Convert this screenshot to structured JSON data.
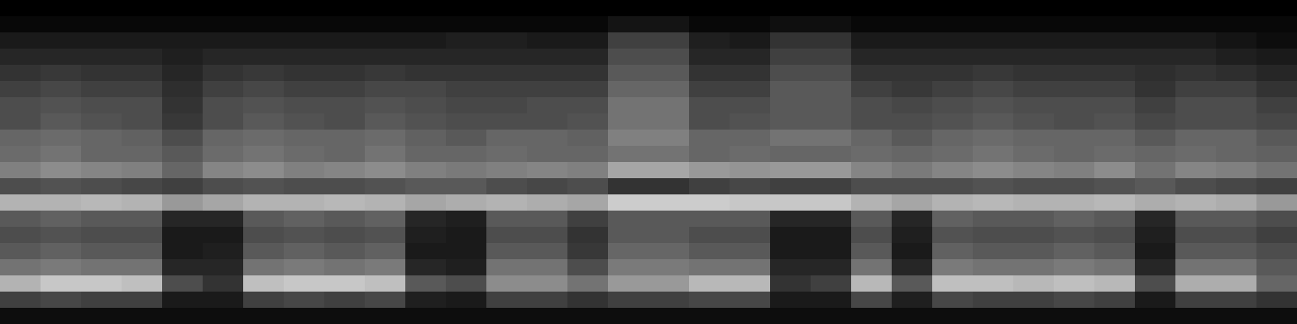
{
  "chart_data": {
    "type": "heatmap",
    "tick_labels": false,
    "zlim": [
      0,
      100
    ],
    "colors": [
      "#000000",
      "#ffffff"
    ],
    "cells": [
      [
        0,
        0,
        0,
        0,
        0,
        0,
        0,
        0,
        0,
        0,
        0,
        0,
        0,
        0,
        0,
        0,
        0,
        0,
        0,
        0,
        0,
        0,
        0,
        0,
        0,
        0,
        0,
        0,
        0,
        0,
        0,
        0
      ],
      [
        3,
        3,
        3,
        3,
        3,
        3,
        3,
        3,
        3,
        3,
        3,
        3,
        3,
        3,
        3,
        8,
        8,
        3,
        3,
        6,
        6,
        3,
        3,
        3,
        3,
        3,
        3,
        3,
        3,
        3,
        3,
        3
      ],
      [
        10,
        10,
        10,
        10,
        10,
        10,
        10,
        10,
        10,
        10,
        10,
        12,
        12,
        10,
        10,
        25,
        25,
        12,
        10,
        20,
        20,
        10,
        10,
        10,
        10,
        10,
        10,
        10,
        10,
        10,
        8,
        5
      ],
      [
        15,
        15,
        15,
        15,
        12,
        15,
        15,
        15,
        15,
        15,
        15,
        15,
        15,
        15,
        15,
        30,
        30,
        15,
        15,
        25,
        25,
        15,
        15,
        15,
        15,
        15,
        15,
        15,
        15,
        15,
        12,
        10
      ],
      [
        20,
        22,
        20,
        20,
        15,
        20,
        22,
        20,
        20,
        22,
        20,
        20,
        20,
        20,
        20,
        35,
        35,
        20,
        20,
        30,
        30,
        20,
        20,
        20,
        22,
        20,
        20,
        20,
        18,
        20,
        18,
        15
      ],
      [
        25,
        28,
        25,
        25,
        18,
        25,
        28,
        25,
        25,
        28,
        28,
        25,
        25,
        25,
        25,
        40,
        40,
        25,
        25,
        35,
        35,
        25,
        22,
        25,
        28,
        25,
        25,
        25,
        20,
        25,
        25,
        20
      ],
      [
        30,
        32,
        30,
        30,
        20,
        30,
        32,
        30,
        30,
        32,
        30,
        28,
        28,
        30,
        30,
        45,
        45,
        30,
        30,
        35,
        35,
        30,
        28,
        30,
        32,
        30,
        30,
        30,
        25,
        30,
        30,
        25
      ],
      [
        30,
        35,
        32,
        30,
        22,
        30,
        35,
        32,
        30,
        35,
        32,
        30,
        30,
        30,
        32,
        45,
        45,
        30,
        32,
        35,
        35,
        30,
        30,
        32,
        35,
        32,
        30,
        32,
        28,
        30,
        30,
        28
      ],
      [
        40,
        42,
        40,
        38,
        30,
        40,
        42,
        40,
        40,
        42,
        38,
        35,
        40,
        40,
        38,
        50,
        50,
        40,
        40,
        45,
        45,
        40,
        35,
        40,
        42,
        40,
        40,
        40,
        35,
        40,
        40,
        35
      ],
      [
        42,
        45,
        40,
        40,
        35,
        42,
        45,
        42,
        40,
        45,
        40,
        40,
        42,
        40,
        40,
        45,
        45,
        40,
        42,
        40,
        40,
        42,
        40,
        42,
        45,
        42,
        40,
        42,
        40,
        42,
        40,
        38
      ],
      [
        50,
        55,
        52,
        50,
        40,
        52,
        55,
        50,
        52,
        55,
        50,
        48,
        50,
        52,
        50,
        65,
        65,
        60,
        58,
        60,
        60,
        52,
        48,
        52,
        55,
        52,
        50,
        55,
        45,
        52,
        50,
        45
      ],
      [
        30,
        32,
        30,
        28,
        25,
        30,
        32,
        30,
        30,
        32,
        35,
        35,
        30,
        28,
        30,
        20,
        20,
        25,
        28,
        25,
        25,
        30,
        30,
        30,
        32,
        30,
        30,
        32,
        35,
        30,
        28,
        25
      ],
      [
        70,
        70,
        72,
        70,
        60,
        65,
        70,
        70,
        72,
        70,
        65,
        68,
        70,
        68,
        65,
        80,
        80,
        80,
        78,
        78,
        78,
        70,
        65,
        70,
        72,
        70,
        70,
        72,
        68,
        70,
        68,
        60
      ],
      [
        35,
        38,
        35,
        35,
        15,
        15,
        35,
        38,
        35,
        38,
        15,
        12,
        35,
        35,
        25,
        35,
        35,
        35,
        35,
        15,
        15,
        35,
        15,
        38,
        35,
        35,
        38,
        35,
        15,
        35,
        35,
        30
      ],
      [
        30,
        32,
        30,
        30,
        10,
        10,
        30,
        32,
        30,
        32,
        12,
        10,
        30,
        30,
        20,
        35,
        35,
        30,
        30,
        10,
        10,
        30,
        12,
        32,
        30,
        30,
        32,
        30,
        12,
        30,
        30,
        25
      ],
      [
        35,
        38,
        35,
        35,
        10,
        12,
        35,
        38,
        35,
        38,
        10,
        10,
        35,
        35,
        22,
        40,
        40,
        35,
        35,
        10,
        10,
        35,
        10,
        38,
        35,
        35,
        38,
        35,
        10,
        35,
        35,
        30
      ],
      [
        45,
        48,
        45,
        45,
        15,
        15,
        45,
        48,
        45,
        48,
        15,
        12,
        45,
        45,
        30,
        48,
        48,
        45,
        45,
        15,
        15,
        45,
        15,
        48,
        45,
        45,
        48,
        45,
        15,
        45,
        45,
        35
      ],
      [
        70,
        78,
        78,
        75,
        30,
        20,
        75,
        78,
        78,
        75,
        35,
        30,
        55,
        55,
        45,
        60,
        60,
        72,
        72,
        20,
        25,
        72,
        35,
        75,
        75,
        72,
        75,
        72,
        30,
        68,
        68,
        40
      ],
      [
        25,
        28,
        25,
        25,
        10,
        10,
        25,
        28,
        25,
        28,
        12,
        10,
        25,
        25,
        20,
        25,
        25,
        28,
        28,
        10,
        10,
        28,
        12,
        28,
        25,
        25,
        28,
        25,
        10,
        25,
        25,
        20
      ],
      [
        5,
        5,
        5,
        5,
        5,
        5,
        5,
        5,
        5,
        5,
        5,
        5,
        5,
        5,
        5,
        5,
        5,
        5,
        5,
        5,
        5,
        5,
        5,
        5,
        5,
        5,
        5,
        5,
        5,
        5,
        5,
        5
      ]
    ]
  }
}
